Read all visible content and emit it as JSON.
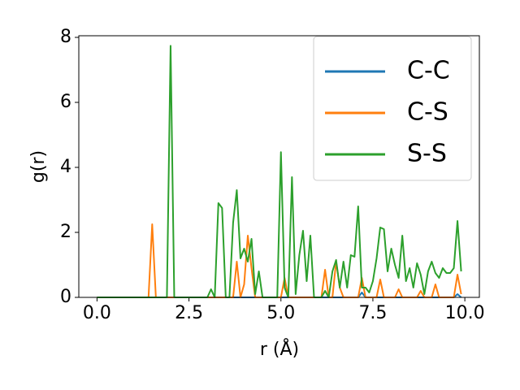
{
  "chart_data": {
    "type": "line",
    "xlabel": "r (Å)",
    "ylabel": "g(r)",
    "x": [
      0.0,
      0.1,
      0.2,
      0.3,
      0.4,
      0.5,
      0.6,
      0.7,
      0.8,
      0.9,
      1.0,
      1.1,
      1.2,
      1.3,
      1.4,
      1.5,
      1.6,
      1.7,
      1.8,
      1.9,
      2.0,
      2.1,
      2.2,
      2.3,
      2.4,
      2.5,
      2.6,
      2.7,
      2.8,
      2.9,
      3.0,
      3.1,
      3.2,
      3.3,
      3.4,
      3.5,
      3.6,
      3.7,
      3.8,
      3.9,
      4.0,
      4.1,
      4.2,
      4.3,
      4.4,
      4.5,
      4.6,
      4.7,
      4.8,
      4.9,
      5.0,
      5.1,
      5.2,
      5.3,
      5.4,
      5.5,
      5.6,
      5.7,
      5.8,
      5.9,
      6.0,
      6.1,
      6.2,
      6.3,
      6.4,
      6.5,
      6.6,
      6.7,
      6.8,
      6.9,
      7.0,
      7.1,
      7.2,
      7.3,
      7.4,
      7.5,
      7.6,
      7.7,
      7.8,
      7.9,
      8.0,
      8.1,
      8.2,
      8.3,
      8.4,
      8.5,
      8.6,
      8.7,
      8.8,
      8.9,
      9.0,
      9.1,
      9.2,
      9.3,
      9.4,
      9.5,
      9.6,
      9.7,
      9.8,
      9.9
    ],
    "series": [
      {
        "name": "C-C",
        "color": "#1f77b4",
        "values": [
          0,
          0,
          0,
          0,
          0,
          0,
          0,
          0,
          0,
          0,
          0,
          0,
          0,
          0,
          0,
          0,
          0,
          0,
          0,
          0,
          0,
          0,
          0,
          0,
          0,
          0,
          0,
          0,
          0,
          0,
          0,
          0,
          0,
          0,
          0,
          0,
          0,
          0,
          0,
          0,
          0,
          0,
          0,
          0,
          0,
          0,
          0,
          0,
          0,
          0,
          0,
          0,
          0,
          0,
          0,
          0,
          0,
          0,
          0,
          0,
          0,
          0,
          0,
          0,
          0,
          0,
          0,
          0,
          0,
          0,
          0,
          0,
          0.15,
          0,
          0,
          0,
          0,
          0,
          0,
          0,
          0,
          0,
          0,
          0,
          0,
          0,
          0,
          0,
          0,
          0,
          0,
          0,
          0,
          0,
          0,
          0,
          0,
          0,
          0.1,
          0
        ]
      },
      {
        "name": "C-S",
        "color": "#ff7f0e",
        "values": [
          0,
          0,
          0,
          0,
          0,
          0,
          0,
          0,
          0,
          0,
          0,
          0,
          0,
          0,
          0,
          2.25,
          0,
          0,
          0,
          0,
          0,
          0,
          0,
          0,
          0,
          0,
          0,
          0,
          0,
          0,
          0,
          0,
          0,
          0,
          0,
          0,
          0,
          0,
          1.1,
          0,
          0.4,
          1.9,
          0.9,
          0,
          0,
          0,
          0,
          0,
          0,
          0,
          0,
          0.6,
          0,
          0,
          0,
          0,
          0,
          0,
          0,
          0,
          0,
          0,
          0.85,
          0,
          0,
          1.1,
          0.3,
          0,
          0,
          0,
          0,
          0,
          0.6,
          0,
          0,
          0,
          0,
          0.55,
          0,
          0,
          0,
          0,
          0.25,
          0,
          0,
          0,
          0,
          0,
          0.2,
          0,
          0,
          0,
          0.4,
          0,
          0,
          0,
          0,
          0,
          0.7,
          0.1
        ]
      },
      {
        "name": "S-S",
        "color": "#2ca02c",
        "values": [
          0,
          0,
          0,
          0,
          0,
          0,
          0,
          0,
          0,
          0,
          0,
          0,
          0,
          0,
          0,
          0,
          0,
          0,
          0,
          0,
          7.74,
          0,
          0,
          0,
          0,
          0,
          0,
          0,
          0,
          0,
          0,
          0.25,
          0,
          2.9,
          2.75,
          0,
          0,
          2.3,
          3.3,
          1.2,
          1.5,
          1.1,
          1.8,
          0.1,
          0.8,
          0,
          0,
          0,
          0,
          0,
          4.47,
          0.3,
          0,
          3.7,
          0.1,
          1.3,
          2.05,
          0.5,
          1.9,
          0,
          0,
          0,
          0.2,
          0,
          0.8,
          1.15,
          0.3,
          1.1,
          0.3,
          1.3,
          1.25,
          2.8,
          0.3,
          0.3,
          0.15,
          0.5,
          1.2,
          2.15,
          2.1,
          0.8,
          1.5,
          1.0,
          0.6,
          1.9,
          0.5,
          0.9,
          0.3,
          1.05,
          0.7,
          0.1,
          0.8,
          1.1,
          0.75,
          0.6,
          0.9,
          0.75,
          0.75,
          0.9,
          2.35,
          0.8
        ]
      }
    ],
    "xlim": [
      -0.495,
      10.395
    ],
    "xticks": [
      {
        "value": 0,
        "label": "0.0"
      },
      {
        "value": 2.5,
        "label": "2.5"
      },
      {
        "value": 5,
        "label": "5.0"
      },
      {
        "value": 7.5,
        "label": "7.5"
      },
      {
        "value": 10,
        "label": "10.0"
      }
    ],
    "ylim": [
      0,
      8.05
    ],
    "yticks": [
      0,
      2,
      4,
      6,
      8
    ],
    "grid": false,
    "legend": "upper right"
  }
}
